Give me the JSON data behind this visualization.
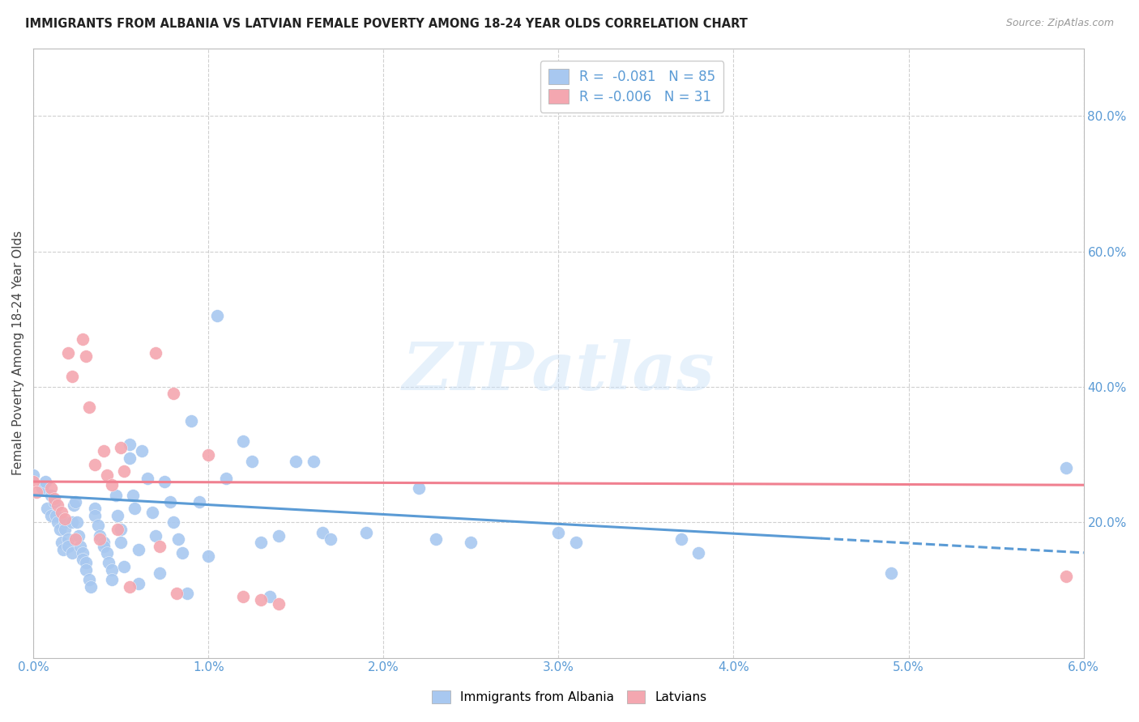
{
  "title": "IMMIGRANTS FROM ALBANIA VS LATVIAN FEMALE POVERTY AMONG 18-24 YEAR OLDS CORRELATION CHART",
  "source": "Source: ZipAtlas.com",
  "ylabel": "Female Poverty Among 18-24 Year Olds",
  "legend_label1": "Immigrants from Albania",
  "legend_label2": "Latvians",
  "legend_line1": "R =  -0.081   N = 85",
  "legend_line2": "R = -0.006   N = 31",
  "color_blue": "#a8c8f0",
  "color_pink": "#f4a7b0",
  "color_blue_line": "#5b9bd5",
  "color_pink_line": "#f08090",
  "color_axis": "#5b9bd5",
  "color_grid": "#d0d0d0",
  "color_title": "#222222",
  "color_source": "#999999",
  "watermark": "ZIPatlas",
  "xlim": [
    0.0,
    6.0
  ],
  "ylim": [
    0.0,
    90.0
  ],
  "xticks": [
    0.0,
    1.0,
    2.0,
    3.0,
    4.0,
    5.0,
    6.0
  ],
  "xtick_labels": [
    "0.0%",
    "1.0%",
    "2.0%",
    "3.0%",
    "4.0%",
    "5.0%",
    "6.0%"
  ],
  "yticks_right": [
    20.0,
    40.0,
    60.0,
    80.0
  ],
  "ytick_labels_right": [
    "20.0%",
    "40.0%",
    "60.0%",
    "80.0%"
  ],
  "blue_x": [
    0.0,
    0.05,
    0.07,
    0.08,
    0.1,
    0.1,
    0.12,
    0.13,
    0.14,
    0.15,
    0.16,
    0.17,
    0.18,
    0.18,
    0.2,
    0.2,
    0.22,
    0.22,
    0.23,
    0.24,
    0.25,
    0.26,
    0.27,
    0.28,
    0.28,
    0.3,
    0.3,
    0.32,
    0.33,
    0.35,
    0.35,
    0.37,
    0.38,
    0.4,
    0.4,
    0.42,
    0.43,
    0.45,
    0.45,
    0.47,
    0.48,
    0.5,
    0.5,
    0.52,
    0.55,
    0.55,
    0.57,
    0.58,
    0.6,
    0.6,
    0.62,
    0.65,
    0.68,
    0.7,
    0.72,
    0.75,
    0.78,
    0.8,
    0.83,
    0.85,
    0.88,
    0.9,
    0.95,
    1.0,
    1.05,
    1.1,
    1.2,
    1.25,
    1.3,
    1.35,
    1.4,
    1.5,
    1.6,
    1.65,
    1.7,
    1.9,
    2.2,
    2.3,
    2.5,
    3.0,
    3.1,
    3.7,
    3.8,
    4.9,
    5.9
  ],
  "blue_y": [
    27.0,
    25.0,
    26.0,
    22.0,
    24.0,
    21.0,
    23.0,
    21.0,
    20.0,
    19.0,
    17.0,
    16.0,
    20.0,
    19.0,
    17.5,
    16.5,
    15.5,
    20.0,
    22.5,
    23.0,
    20.0,
    18.0,
    16.5,
    15.5,
    14.5,
    14.0,
    13.0,
    11.5,
    10.5,
    22.0,
    21.0,
    19.5,
    18.0,
    17.0,
    16.5,
    15.5,
    14.0,
    13.0,
    11.5,
    24.0,
    21.0,
    19.0,
    17.0,
    13.5,
    31.5,
    29.5,
    24.0,
    22.0,
    16.0,
    11.0,
    30.5,
    26.5,
    21.5,
    18.0,
    12.5,
    26.0,
    23.0,
    20.0,
    17.5,
    15.5,
    9.5,
    35.0,
    23.0,
    15.0,
    50.5,
    26.5,
    32.0,
    29.0,
    17.0,
    9.0,
    18.0,
    29.0,
    29.0,
    18.5,
    17.5,
    18.5,
    25.0,
    17.5,
    17.0,
    18.5,
    17.0,
    17.5,
    15.5,
    12.5,
    28.0
  ],
  "pink_x": [
    0.0,
    0.02,
    0.1,
    0.12,
    0.14,
    0.16,
    0.18,
    0.2,
    0.22,
    0.24,
    0.28,
    0.3,
    0.32,
    0.35,
    0.38,
    0.4,
    0.42,
    0.45,
    0.48,
    0.5,
    0.52,
    0.55,
    0.7,
    0.72,
    0.8,
    0.82,
    1.0,
    1.2,
    1.3,
    1.4,
    5.9
  ],
  "pink_y": [
    26.0,
    24.5,
    25.0,
    23.5,
    22.5,
    21.5,
    20.5,
    45.0,
    41.5,
    17.5,
    47.0,
    44.5,
    37.0,
    28.5,
    17.5,
    30.5,
    27.0,
    25.5,
    19.0,
    31.0,
    27.5,
    10.5,
    45.0,
    16.5,
    39.0,
    9.5,
    30.0,
    9.0,
    8.5,
    8.0,
    12.0
  ],
  "blue_trend_x0": 0.0,
  "blue_trend_x1": 6.0,
  "blue_trend_y0": 24.0,
  "blue_trend_y1": 15.5,
  "blue_dash_start": 4.5,
  "pink_trend_x0": 0.0,
  "pink_trend_x1": 6.0,
  "pink_trend_y0": 26.0,
  "pink_trend_y1": 25.5
}
